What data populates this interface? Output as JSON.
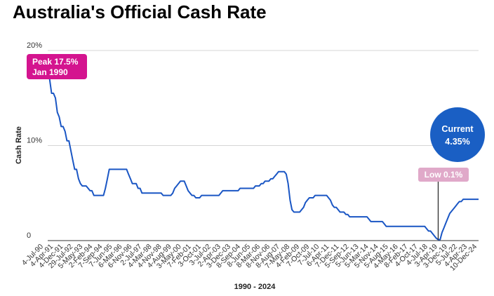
{
  "title": "Australia's Official Cash Rate",
  "chart_data": {
    "type": "line",
    "title": "Australia's Official Cash Rate",
    "xlabel": "1990 - 2024",
    "ylabel": "Cash Rate",
    "ylim": [
      0,
      20
    ],
    "y_ticks": [
      {
        "value": 0,
        "label": "0"
      },
      {
        "value": 10,
        "label": "10%"
      },
      {
        "value": 20,
        "label": "20%"
      }
    ],
    "grid": true,
    "x_tick_labels": [
      "4-Jul-90",
      "4-Apr-91",
      "4-Dec-91",
      "29-Jul-92",
      "5-May-93",
      "2-Feb-94",
      "7-Sep-94",
      "7-Jun-95",
      "6-Mar-96",
      "6-Nov-96",
      "2-Jul-97",
      "4-Mar-98",
      "4-Nov-98",
      "4-Aug-99",
      "3-May-00",
      "7-Feb-01",
      "3-Oct-01",
      "3-Jul-02",
      "2-Apr-03",
      "3-Dec-03",
      "8-Sep-04",
      "8-Jun-05",
      "8-Mar-06",
      "8-Nov-06",
      "8-Aug-07",
      "7-May-08",
      "4-Feb-09",
      "7-Oct-09",
      "7-Jul-10",
      "6-Apr-11",
      "7-Dec-11",
      "5-Sep-12",
      "5-Jun-13",
      "5-Mar-14",
      "5-Nov-14",
      "5-Aug-15",
      "4-May-16",
      "8-Feb-17",
      "4-Oct-17",
      "4-Jul-18",
      "3-Apr-19",
      "3-Dec-19",
      "5-Jul-22",
      "4-Apr-23",
      "10-Dec-24"
    ],
    "series": [
      {
        "color": "#1a56c4",
        "values": [
          17.5,
          17,
          15.5,
          15.5,
          15,
          13.5,
          13,
          12,
          12,
          11.5,
          10.5,
          10.5,
          9.5,
          8.5,
          7.5,
          7.5,
          6.5,
          6,
          5.75,
          5.75,
          5.75,
          5.5,
          5.25,
          5.25,
          4.75,
          4.75,
          4.75,
          4.75,
          4.75,
          4.75,
          5.5,
          6.5,
          7.5,
          7.5,
          7.5,
          7.5,
          7.5,
          7.5,
          7.5,
          7.5,
          7.5,
          7.5,
          7,
          6.5,
          6,
          6,
          6,
          5.5,
          5.5,
          5,
          5,
          5,
          5,
          5,
          5,
          5,
          5,
          5,
          5,
          5,
          4.75,
          4.75,
          4.75,
          4.75,
          4.75,
          5,
          5.5,
          5.75,
          6,
          6.25,
          6.25,
          6.25,
          5.75,
          5.25,
          5,
          4.75,
          4.75,
          4.5,
          4.5,
          4.5,
          4.75,
          4.75,
          4.75,
          4.75,
          4.75,
          4.75,
          4.75,
          4.75,
          4.75,
          4.75,
          5,
          5.25,
          5.25,
          5.25,
          5.25,
          5.25,
          5.25,
          5.25,
          5.25,
          5.25,
          5.5,
          5.5,
          5.5,
          5.5,
          5.5,
          5.5,
          5.5,
          5.5,
          5.75,
          5.75,
          5.75,
          6,
          6,
          6.25,
          6.25,
          6.25,
          6.5,
          6.5,
          6.75,
          7,
          7.25,
          7.25,
          7.25,
          7.25,
          7,
          6,
          4.25,
          3.25,
          3,
          3,
          3,
          3,
          3.25,
          3.5,
          4,
          4.25,
          4.5,
          4.5,
          4.5,
          4.75,
          4.75,
          4.75,
          4.75,
          4.75,
          4.75,
          4.75,
          4.5,
          4.25,
          3.75,
          3.5,
          3.5,
          3.25,
          3,
          3,
          3,
          2.75,
          2.75,
          2.5,
          2.5,
          2.5,
          2.5,
          2.5,
          2.5,
          2.5,
          2.5,
          2.5,
          2.5,
          2.25,
          2,
          2,
          2,
          2,
          2,
          2,
          2,
          1.75,
          1.5,
          1.5,
          1.5,
          1.5,
          1.5,
          1.5,
          1.5,
          1.5,
          1.5,
          1.5,
          1.5,
          1.5,
          1.5,
          1.5,
          1.5,
          1.5,
          1.5,
          1.5,
          1.5,
          1.5,
          1.5,
          1.25,
          1,
          1,
          0.75,
          0.5,
          0.25,
          0.1,
          0.1,
          0.85,
          1.35,
          1.85,
          2.35,
          2.85,
          3.1,
          3.35,
          3.6,
          3.85,
          4.1,
          4.1,
          4.35,
          4.35,
          4.35,
          4.35,
          4.35,
          4.35,
          4.35,
          4.35,
          4.35
        ]
      }
    ],
    "annotations": [
      {
        "text_lines": [
          "Peak 17.5%",
          "Jan 1990"
        ],
        "color": "#d4148f",
        "text_color": "#ffffff",
        "y": 17.5
      },
      {
        "text_lines": [
          "Low 0.1%"
        ],
        "color": "#e0a9c9",
        "text_color": "#ffffff",
        "y": 0.1
      },
      {
        "text_lines": [
          "Current",
          "4.35%"
        ],
        "color": "#1a5fc4",
        "text_color": "#ffffff",
        "y": 4.35
      }
    ]
  }
}
